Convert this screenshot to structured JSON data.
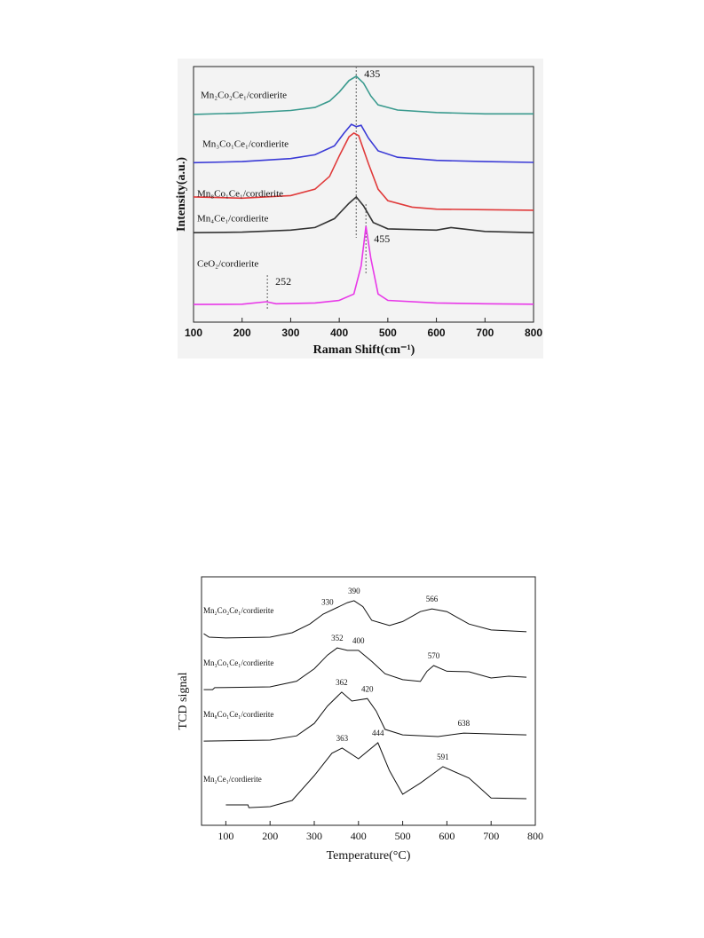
{
  "chart_data": [
    {
      "type": "line",
      "xlabel": "Raman Shift(cm⁻¹)",
      "ylabel": "Intensity(a.u.)",
      "xlim": [
        100,
        800
      ],
      "ylim": [
        0,
        100
      ],
      "xticks": [
        100,
        200,
        300,
        400,
        500,
        600,
        700,
        800
      ],
      "reference_lines": [
        435,
        455,
        252
      ],
      "series": [
        {
          "name": "Mn₂Co₂Ce₁/cordierite",
          "color": "#3a9a8e",
          "x": [
            100,
            200,
            300,
            350,
            380,
            400,
            420,
            435,
            450,
            465,
            480,
            520,
            600,
            700,
            800
          ],
          "values": [
            81.3,
            81.8,
            82.8,
            84,
            86.5,
            90,
            94.5,
            96.2,
            93.5,
            88.5,
            85,
            83,
            82,
            81.5,
            81.5
          ]
        },
        {
          "name": "Mn₃Co₁Ce₁/cordierite",
          "color": "#3a3ad6",
          "x": [
            100,
            200,
            300,
            350,
            390,
            410,
            425,
            435,
            445,
            460,
            480,
            520,
            600,
            700,
            800
          ],
          "values": [
            62.4,
            62.8,
            64,
            65.5,
            69,
            74,
            77.4,
            76.5,
            77,
            72,
            67,
            64.5,
            63.3,
            62.8,
            62.5
          ]
        },
        {
          "name": "Mn₈Co₁Ce₁/cordierite",
          "color": "#e03a3a",
          "x": [
            100,
            200,
            300,
            350,
            380,
            400,
            420,
            430,
            440,
            460,
            480,
            500,
            550,
            600,
            700,
            800
          ],
          "values": [
            49,
            48.5,
            49.5,
            52,
            57,
            65,
            72.5,
            74,
            73,
            62,
            52,
            47.5,
            45,
            44.2,
            44,
            43.8
          ]
        },
        {
          "name": "Mn₄Ce₁/cordierite",
          "color": "#333333",
          "x": [
            100,
            200,
            300,
            350,
            390,
            420,
            435,
            450,
            470,
            500,
            600,
            630,
            700,
            800
          ],
          "values": [
            35,
            35.2,
            36,
            37,
            40.5,
            46.5,
            49,
            45.5,
            39,
            36.5,
            36,
            37,
            35.5,
            35
          ]
        },
        {
          "name": "CeO₂/cordierite",
          "color": "#e838e8",
          "x": [
            100,
            200,
            250,
            270,
            350,
            400,
            430,
            445,
            455,
            465,
            480,
            500,
            600,
            700,
            800
          ],
          "values": [
            6.9,
            7,
            8,
            7.2,
            7.5,
            8.5,
            11,
            22,
            37.5,
            25,
            11,
            8.5,
            7.5,
            7.2,
            7
          ]
        }
      ]
    },
    {
      "type": "line",
      "xlabel": "Temperature(°C)",
      "ylabel": "TCD signal",
      "xlim": [
        45,
        800
      ],
      "ylim": [
        0,
        100
      ],
      "xticks": [
        100,
        200,
        300,
        400,
        500,
        600,
        700,
        800
      ],
      "series": [
        {
          "name": "Mn₂Co₂Ce₁/cordierite",
          "color": "#111111",
          "peaks": [
            330,
            390,
            566
          ],
          "x": [
            50,
            62,
            100,
            200,
            250,
            290,
            320,
            350,
            375,
            390,
            410,
            430,
            470,
            500,
            540,
            566,
            600,
            650,
            700,
            780
          ],
          "values": [
            77.1,
            75.7,
            75.4,
            75.7,
            77.5,
            81,
            85,
            87.5,
            89.6,
            90.4,
            88,
            82.5,
            80.4,
            82,
            86,
            87.1,
            86,
            81,
            78.6,
            77.9
          ]
        },
        {
          "name": "Mn₃Co₁Ce₁/cordierite",
          "color": "#111111",
          "peaks": [
            352,
            400,
            570
          ],
          "x": [
            50,
            70,
            75,
            200,
            260,
            300,
            330,
            352,
            375,
            400,
            430,
            460,
            500,
            540,
            555,
            570,
            600,
            650,
            700,
            740,
            780
          ],
          "values": [
            54.6,
            54.6,
            55.4,
            55.7,
            58,
            63,
            68.5,
            71.4,
            70.4,
            70.4,
            66,
            61,
            58.6,
            57.9,
            62,
            64.3,
            62,
            61.8,
            59.3,
            60,
            59.6
          ]
        },
        {
          "name": "Mn₈Co₁Ce₁/cordierite",
          "color": "#111111",
          "peaks": [
            362,
            420,
            638
          ],
          "x": [
            50,
            200,
            260,
            300,
            330,
            362,
            385,
            420,
            440,
            460,
            500,
            580,
            638,
            700,
            780
          ],
          "values": [
            33.9,
            34.3,
            36,
            41,
            48,
            53.6,
            50,
            51,
            46,
            38.6,
            36.4,
            35.7,
            37.1,
            36.8,
            36.4
          ]
        },
        {
          "name": "Mn₂Ce₁/cordierite",
          "color": "#111111",
          "peaks": [
            363,
            444,
            591
          ],
          "x": [
            100,
            150,
            152,
            200,
            250,
            300,
            340,
            363,
            400,
            444,
            470,
            500,
            540,
            591,
            650,
            700,
            780
          ],
          "values": [
            8.2,
            8.2,
            7.1,
            7.5,
            10,
            20,
            29,
            31.1,
            26.8,
            33.2,
            22,
            12.5,
            17,
            23.6,
            19,
            11,
            10.7
          ]
        }
      ]
    }
  ]
}
